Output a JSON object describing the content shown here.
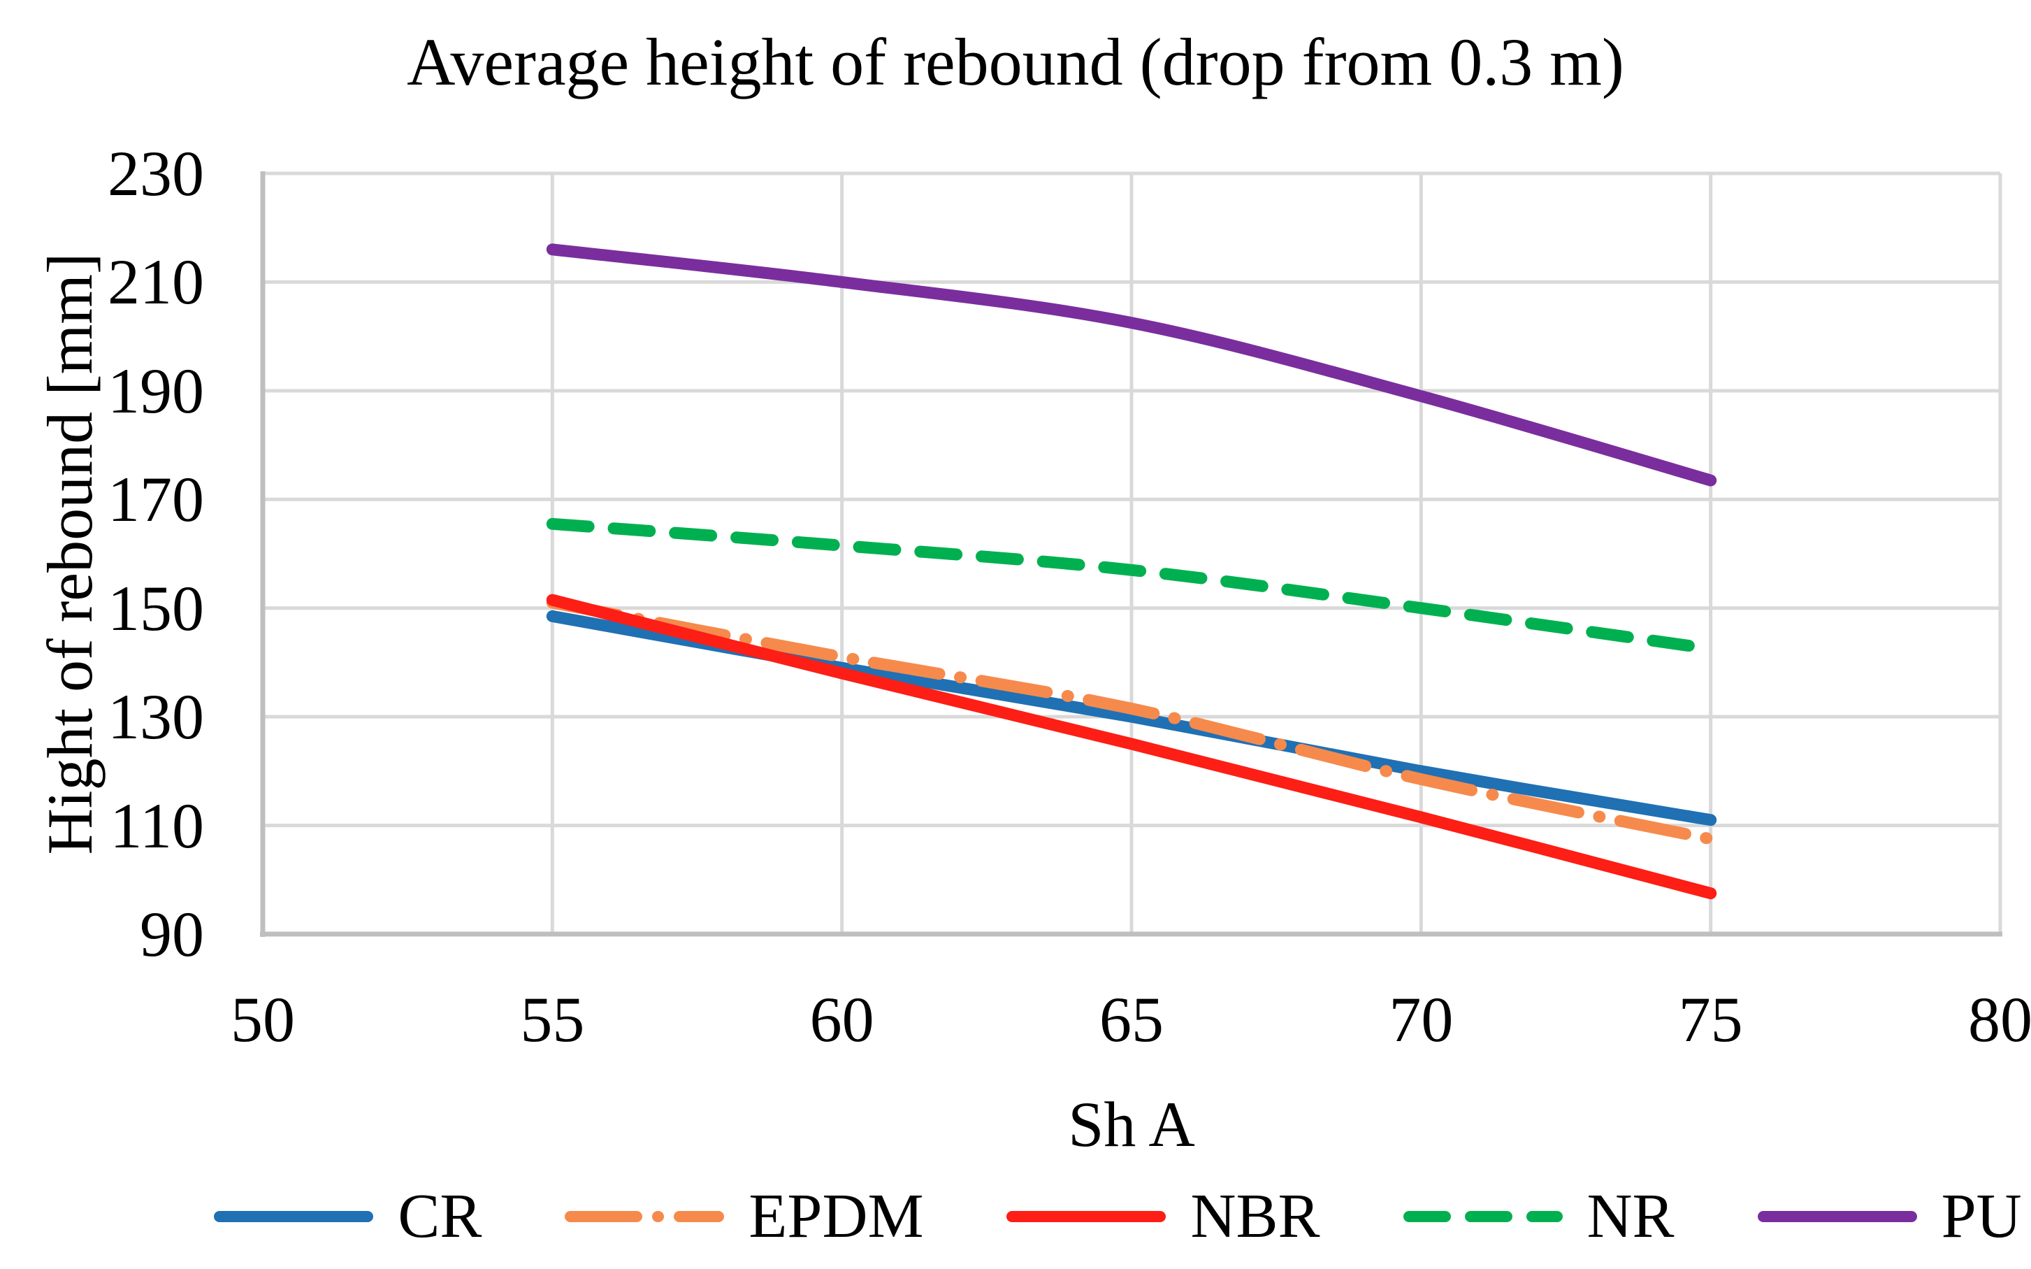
{
  "page": {
    "background": "#FFFFFF"
  },
  "chart_data": {
    "type": "line",
    "title": "Average height of rebound (drop from 0.3 m)",
    "xlabel": "Sh A",
    "ylabel": "Hight of rebound [mm]",
    "x": [
      55,
      60,
      65,
      70,
      75
    ],
    "x_ticks": [
      50,
      55,
      60,
      65,
      70,
      75,
      80
    ],
    "y_ticks": [
      230,
      210,
      190,
      170,
      150,
      130,
      110,
      90
    ],
    "xlim": [
      50,
      80
    ],
    "ylim": [
      90,
      230
    ],
    "grid": true,
    "grid_color": "#D9D9D9",
    "axis_color": "#BFBFBF",
    "legend_position": "bottom",
    "series": [
      {
        "name": "CR",
        "color": "#2070B4",
        "line_style": "solid",
        "values": [
          148.5,
          139,
          130,
          120,
          111
        ]
      },
      {
        "name": "EPDM",
        "color": "#F68A4C",
        "line_style": "dash-dot",
        "values": [
          151,
          141,
          131.5,
          118.5,
          107.5
        ]
      },
      {
        "name": "NBR",
        "color": "#FD1E15",
        "line_style": "solid",
        "values": [
          151.5,
          138,
          125,
          111.5,
          97.5
        ]
      },
      {
        "name": "NR",
        "color": "#00B050",
        "line_style": "dash",
        "values": [
          165.5,
          161.5,
          157,
          150,
          142.5
        ]
      },
      {
        "name": "PU",
        "color": "#7A2E9D",
        "line_style": "solid",
        "values": [
          216,
          210,
          202.5,
          189,
          173.5
        ]
      }
    ]
  }
}
